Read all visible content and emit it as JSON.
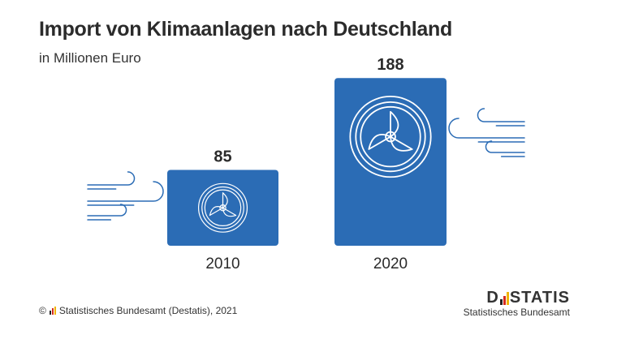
{
  "header": {
    "title": "Import von Klimaanlagen nach Deutschland",
    "subtitle": "in Millionen Euro"
  },
  "chart_data": {
    "type": "bar",
    "title": "Import von Klimaanlagen nach Deutschland",
    "subtitle": "in Millionen Euro",
    "categories": [
      "2010",
      "2020"
    ],
    "values": [
      85,
      188
    ],
    "value_labels": [
      "85",
      "188"
    ],
    "ylim": [
      0,
      200
    ],
    "grid": false,
    "legend": "none",
    "bar_color": "#2b6cb5",
    "icons": [
      "fan-icon",
      "wind-icon"
    ]
  },
  "footer": {
    "source": "Statistisches Bundesamt (Destatis), 2021",
    "copyright_symbol": "©"
  },
  "logo": {
    "word_left": "D",
    "word_right": "STATIS",
    "sub": "Statistisches Bundesamt"
  },
  "colors": {
    "bar": "#2b6cb5",
    "icon_stroke": "#ffffff",
    "wind": "#2b6cb5",
    "flag_black": "#222222",
    "flag_red": "#d52b1e",
    "flag_gold": "#f0b400"
  }
}
